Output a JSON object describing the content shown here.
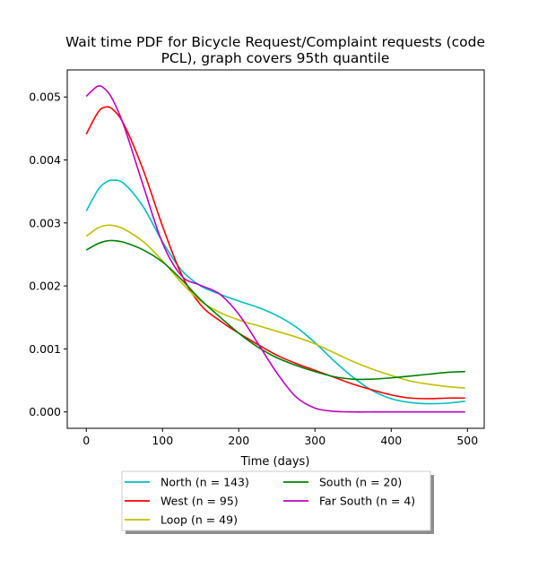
{
  "chart_data": {
    "type": "line",
    "title_line1": "Wait time PDF for Bicycle Request/Complaint  requests (code",
    "title_line2": "PCL), graph covers 95th quantile",
    "xlabel": "Time (days)",
    "ylabel": "",
    "xlim": [
      -25,
      522
    ],
    "ylim": [
      -0.00026,
      0.00543
    ],
    "xticks": [
      0,
      100,
      200,
      300,
      400,
      500
    ],
    "xtick_labels": [
      "0",
      "100",
      "200",
      "300",
      "400",
      "500"
    ],
    "yticks": [
      0.0,
      0.001,
      0.002,
      0.003,
      0.004,
      0.005
    ],
    "ytick_labels": [
      "0.000",
      "0.001",
      "0.002",
      "0.003",
      "0.004",
      "0.005"
    ],
    "grid": false,
    "legend_position": "below",
    "x": [
      0,
      15,
      25,
      35,
      50,
      75,
      100,
      125,
      150,
      175,
      200,
      225,
      250,
      275,
      300,
      325,
      350,
      375,
      400,
      425,
      450,
      475,
      497
    ],
    "series": [
      {
        "name": "North (n = 143)",
        "color": "#00bfbf",
        "values": [
          0.00319,
          0.00352,
          0.00364,
          0.00368,
          0.00362,
          0.00325,
          0.0027,
          0.00225,
          0.002,
          0.00187,
          0.00176,
          0.00166,
          0.00153,
          0.00135,
          0.0011,
          0.00081,
          0.00055,
          0.00034,
          0.00021,
          0.00015,
          0.00013,
          0.00014,
          0.00017
        ]
      },
      {
        "name": "West (n = 95)",
        "color": "#ff0000",
        "values": [
          0.00441,
          0.00475,
          0.00484,
          0.0048,
          0.00455,
          0.00383,
          0.00295,
          0.00218,
          0.0017,
          0.00145,
          0.00125,
          0.00107,
          0.0009,
          0.00077,
          0.00066,
          0.00055,
          0.00044,
          0.00035,
          0.00027,
          0.00022,
          0.00021,
          0.00022,
          0.00022
        ]
      },
      {
        "name": "Loop (n = 49)",
        "color": "#bfbf00",
        "values": [
          0.00279,
          0.00292,
          0.00296,
          0.00296,
          0.0029,
          0.0027,
          0.0024,
          0.00205,
          0.00176,
          0.00158,
          0.00146,
          0.00137,
          0.00128,
          0.00119,
          0.00108,
          0.00094,
          0.0008,
          0.00068,
          0.00058,
          0.00049,
          0.00044,
          0.0004,
          0.00038
        ]
      },
      {
        "name": "South (n = 20)",
        "color": "#008000",
        "values": [
          0.00257,
          0.00267,
          0.00271,
          0.00272,
          0.00269,
          0.00257,
          0.00238,
          0.0021,
          0.00178,
          0.00151,
          0.00125,
          0.00103,
          0.00086,
          0.00074,
          0.00064,
          0.00056,
          0.00052,
          0.00052,
          0.00054,
          0.00057,
          0.0006,
          0.00063,
          0.00064
        ]
      },
      {
        "name": "Far South (n = 4)",
        "color": "#bf00bf",
        "values": [
          0.00501,
          0.00517,
          0.00512,
          0.00495,
          0.00452,
          0.00358,
          0.00268,
          0.00216,
          0.00201,
          0.00187,
          0.00155,
          0.00109,
          0.00062,
          0.00024,
          6e-05,
          1e-05,
          0.0,
          0.0,
          0.0,
          0.0,
          0.0,
          0.0,
          0.0
        ]
      }
    ]
  }
}
